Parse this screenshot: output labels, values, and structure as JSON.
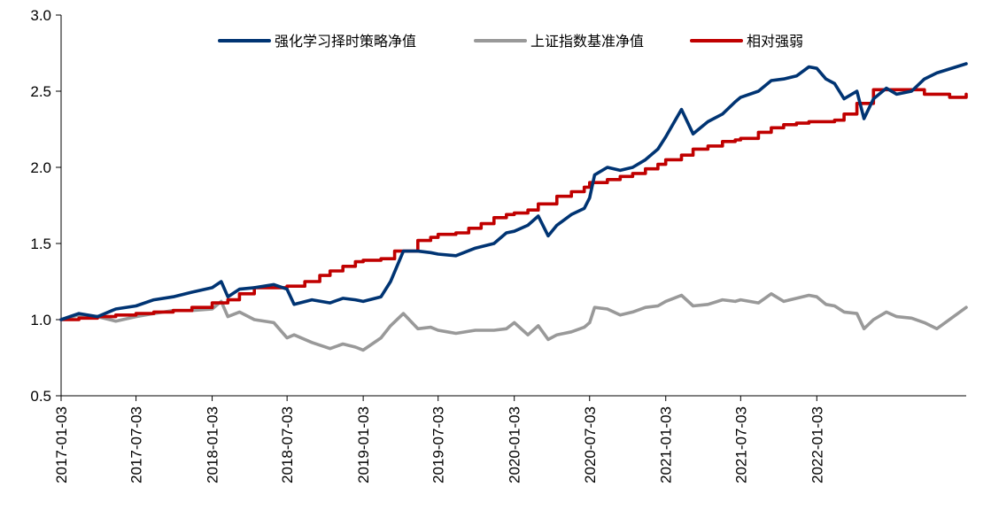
{
  "chart_data": {
    "type": "line",
    "title": "",
    "xlabel": "",
    "ylabel": "",
    "ylim": [
      0.5,
      3.0
    ],
    "yticks": [
      "0.5",
      "1.0",
      "1.5",
      "2.0",
      "2.5",
      "3.0"
    ],
    "xlim": [
      "2017-01-03",
      "2022-12-30"
    ],
    "xticks": [
      "2017-01-03",
      "2017-07-03",
      "2018-01-03",
      "2018-07-03",
      "2019-01-03",
      "2019-07-03",
      "2020-01-03",
      "2020-07-03",
      "2021-01-03",
      "2021-07-03",
      "2022-01-03"
    ],
    "grid": false,
    "legend_position": "top-center",
    "series": [
      {
        "name": "强化学习择时策略净值",
        "color": "#003473",
        "points": [
          [
            "2017-01-03",
            1.0
          ],
          [
            "2017-02-15",
            1.04
          ],
          [
            "2017-04-01",
            1.02
          ],
          [
            "2017-05-15",
            1.07
          ],
          [
            "2017-07-03",
            1.09
          ],
          [
            "2017-08-15",
            1.13
          ],
          [
            "2017-10-01",
            1.15
          ],
          [
            "2017-11-15",
            1.18
          ],
          [
            "2018-01-03",
            1.21
          ],
          [
            "2018-01-25",
            1.25
          ],
          [
            "2018-02-10",
            1.15
          ],
          [
            "2018-03-10",
            1.2
          ],
          [
            "2018-04-15",
            1.21
          ],
          [
            "2018-06-01",
            1.23
          ],
          [
            "2018-07-03",
            1.2
          ],
          [
            "2018-07-20",
            1.1
          ],
          [
            "2018-09-01",
            1.13
          ],
          [
            "2018-10-15",
            1.11
          ],
          [
            "2018-11-15",
            1.14
          ],
          [
            "2018-12-15",
            1.13
          ],
          [
            "2019-01-03",
            1.12
          ],
          [
            "2019-02-15",
            1.15
          ],
          [
            "2019-03-10",
            1.25
          ],
          [
            "2019-04-10",
            1.45
          ],
          [
            "2019-05-15",
            1.45
          ],
          [
            "2019-06-15",
            1.44
          ],
          [
            "2019-07-03",
            1.43
          ],
          [
            "2019-08-15",
            1.42
          ],
          [
            "2019-10-01",
            1.47
          ],
          [
            "2019-11-15",
            1.5
          ],
          [
            "2019-12-15",
            1.57
          ],
          [
            "2020-01-03",
            1.58
          ],
          [
            "2020-02-05",
            1.62
          ],
          [
            "2020-03-01",
            1.68
          ],
          [
            "2020-03-25",
            1.55
          ],
          [
            "2020-04-15",
            1.62
          ],
          [
            "2020-05-20",
            1.69
          ],
          [
            "2020-06-20",
            1.73
          ],
          [
            "2020-07-03",
            1.8
          ],
          [
            "2020-07-15",
            1.95
          ],
          [
            "2020-08-15",
            2.0
          ],
          [
            "2020-09-15",
            1.98
          ],
          [
            "2020-10-15",
            2.0
          ],
          [
            "2020-11-15",
            2.05
          ],
          [
            "2020-12-15",
            2.12
          ],
          [
            "2021-01-03",
            2.2
          ],
          [
            "2021-02-10",
            2.38
          ],
          [
            "2021-03-10",
            2.22
          ],
          [
            "2021-04-15",
            2.3
          ],
          [
            "2021-05-20",
            2.35
          ],
          [
            "2021-06-20",
            2.43
          ],
          [
            "2021-07-03",
            2.46
          ],
          [
            "2021-08-15",
            2.5
          ],
          [
            "2021-09-15",
            2.57
          ],
          [
            "2021-10-15",
            2.58
          ],
          [
            "2021-11-15",
            2.6
          ],
          [
            "2021-12-15",
            2.66
          ],
          [
            "2022-01-03",
            2.65
          ],
          [
            "2022-01-25",
            2.58
          ],
          [
            "2022-02-15",
            2.55
          ],
          [
            "2022-03-10",
            2.45
          ],
          [
            "2022-04-10",
            2.5
          ],
          [
            "2022-04-27",
            2.32
          ],
          [
            "2022-05-20",
            2.45
          ],
          [
            "2022-06-20",
            2.52
          ],
          [
            "2022-07-15",
            2.48
          ],
          [
            "2022-08-20",
            2.5
          ],
          [
            "2022-09-20",
            2.58
          ],
          [
            "2022-10-20",
            2.62
          ],
          [
            "2022-12-30",
            2.68
          ]
        ]
      },
      {
        "name": "上证指数基准净值",
        "color": "#999999",
        "points": [
          [
            "2017-01-03",
            1.0
          ],
          [
            "2017-02-15",
            1.03
          ],
          [
            "2017-04-01",
            1.02
          ],
          [
            "2017-05-15",
            0.99
          ],
          [
            "2017-07-03",
            1.02
          ],
          [
            "2017-08-15",
            1.04
          ],
          [
            "2017-10-01",
            1.06
          ],
          [
            "2017-11-15",
            1.06
          ],
          [
            "2018-01-03",
            1.07
          ],
          [
            "2018-01-25",
            1.12
          ],
          [
            "2018-02-10",
            1.02
          ],
          [
            "2018-03-10",
            1.05
          ],
          [
            "2018-04-15",
            1.0
          ],
          [
            "2018-06-01",
            0.98
          ],
          [
            "2018-07-03",
            0.88
          ],
          [
            "2018-07-20",
            0.9
          ],
          [
            "2018-09-01",
            0.85
          ],
          [
            "2018-10-15",
            0.81
          ],
          [
            "2018-11-15",
            0.84
          ],
          [
            "2018-12-15",
            0.82
          ],
          [
            "2019-01-03",
            0.8
          ],
          [
            "2019-02-15",
            0.88
          ],
          [
            "2019-03-10",
            0.96
          ],
          [
            "2019-04-10",
            1.04
          ],
          [
            "2019-05-15",
            0.94
          ],
          [
            "2019-06-15",
            0.95
          ],
          [
            "2019-07-03",
            0.93
          ],
          [
            "2019-08-15",
            0.91
          ],
          [
            "2019-10-01",
            0.93
          ],
          [
            "2019-11-15",
            0.93
          ],
          [
            "2019-12-15",
            0.94
          ],
          [
            "2020-01-03",
            0.98
          ],
          [
            "2020-02-05",
            0.9
          ],
          [
            "2020-03-01",
            0.96
          ],
          [
            "2020-03-25",
            0.87
          ],
          [
            "2020-04-15",
            0.9
          ],
          [
            "2020-05-20",
            0.92
          ],
          [
            "2020-06-20",
            0.95
          ],
          [
            "2020-07-03",
            0.98
          ],
          [
            "2020-07-15",
            1.08
          ],
          [
            "2020-08-15",
            1.07
          ],
          [
            "2020-09-15",
            1.03
          ],
          [
            "2020-10-15",
            1.05
          ],
          [
            "2020-11-15",
            1.08
          ],
          [
            "2020-12-15",
            1.09
          ],
          [
            "2021-01-03",
            1.12
          ],
          [
            "2021-02-10",
            1.16
          ],
          [
            "2021-03-10",
            1.09
          ],
          [
            "2021-04-15",
            1.1
          ],
          [
            "2021-05-20",
            1.13
          ],
          [
            "2021-06-20",
            1.12
          ],
          [
            "2021-07-03",
            1.13
          ],
          [
            "2021-08-15",
            1.11
          ],
          [
            "2021-09-15",
            1.17
          ],
          [
            "2021-10-15",
            1.12
          ],
          [
            "2021-11-15",
            1.14
          ],
          [
            "2021-12-15",
            1.16
          ],
          [
            "2022-01-03",
            1.15
          ],
          [
            "2022-01-25",
            1.1
          ],
          [
            "2022-02-15",
            1.09
          ],
          [
            "2022-03-10",
            1.05
          ],
          [
            "2022-04-10",
            1.04
          ],
          [
            "2022-04-27",
            0.94
          ],
          [
            "2022-05-20",
            1.0
          ],
          [
            "2022-06-20",
            1.05
          ],
          [
            "2022-07-15",
            1.02
          ],
          [
            "2022-08-20",
            1.01
          ],
          [
            "2022-09-20",
            0.98
          ],
          [
            "2022-10-20",
            0.94
          ],
          [
            "2022-12-30",
            1.08
          ]
        ]
      },
      {
        "name": "相对强弱",
        "color": "#C00000",
        "step": true,
        "points": [
          [
            "2017-01-03",
            1.0
          ],
          [
            "2017-02-15",
            1.01
          ],
          [
            "2017-04-01",
            1.02
          ],
          [
            "2017-05-15",
            1.03
          ],
          [
            "2017-07-03",
            1.04
          ],
          [
            "2017-08-15",
            1.05
          ],
          [
            "2017-10-01",
            1.06
          ],
          [
            "2017-11-15",
            1.08
          ],
          [
            "2018-01-03",
            1.11
          ],
          [
            "2018-02-10",
            1.13
          ],
          [
            "2018-03-10",
            1.17
          ],
          [
            "2018-04-15",
            1.21
          ],
          [
            "2018-06-01",
            1.21
          ],
          [
            "2018-07-03",
            1.22
          ],
          [
            "2018-08-15",
            1.25
          ],
          [
            "2018-09-20",
            1.29
          ],
          [
            "2018-10-15",
            1.32
          ],
          [
            "2018-11-15",
            1.35
          ],
          [
            "2018-12-15",
            1.38
          ],
          [
            "2019-01-03",
            1.39
          ],
          [
            "2019-02-15",
            1.4
          ],
          [
            "2019-03-20",
            1.45
          ],
          [
            "2019-04-20",
            1.45
          ],
          [
            "2019-05-15",
            1.52
          ],
          [
            "2019-06-15",
            1.54
          ],
          [
            "2019-07-03",
            1.56
          ],
          [
            "2019-08-15",
            1.57
          ],
          [
            "2019-09-15",
            1.6
          ],
          [
            "2019-10-15",
            1.63
          ],
          [
            "2019-11-15",
            1.67
          ],
          [
            "2019-12-15",
            1.69
          ],
          [
            "2020-01-03",
            1.7
          ],
          [
            "2020-02-05",
            1.72
          ],
          [
            "2020-03-01",
            1.76
          ],
          [
            "2020-04-15",
            1.81
          ],
          [
            "2020-05-20",
            1.84
          ],
          [
            "2020-06-20",
            1.87
          ],
          [
            "2020-07-03",
            1.9
          ],
          [
            "2020-07-15",
            1.9
          ],
          [
            "2020-08-15",
            1.92
          ],
          [
            "2020-09-15",
            1.94
          ],
          [
            "2020-10-15",
            1.96
          ],
          [
            "2020-11-15",
            1.99
          ],
          [
            "2020-12-15",
            2.02
          ],
          [
            "2021-01-03",
            2.05
          ],
          [
            "2021-02-10",
            2.08
          ],
          [
            "2021-03-10",
            2.12
          ],
          [
            "2021-04-15",
            2.14
          ],
          [
            "2021-05-20",
            2.17
          ],
          [
            "2021-06-20",
            2.18
          ],
          [
            "2021-07-03",
            2.19
          ],
          [
            "2021-08-15",
            2.23
          ],
          [
            "2021-09-15",
            2.26
          ],
          [
            "2021-10-15",
            2.28
          ],
          [
            "2021-11-15",
            2.29
          ],
          [
            "2021-12-15",
            2.3
          ],
          [
            "2022-01-03",
            2.3
          ],
          [
            "2022-02-15",
            2.31
          ],
          [
            "2022-03-10",
            2.35
          ],
          [
            "2022-04-10",
            2.42
          ],
          [
            "2022-05-20",
            2.51
          ],
          [
            "2022-08-20",
            2.51
          ],
          [
            "2022-09-20",
            2.48
          ],
          [
            "2022-11-20",
            2.46
          ],
          [
            "2022-12-30",
            2.48
          ]
        ]
      }
    ]
  }
}
